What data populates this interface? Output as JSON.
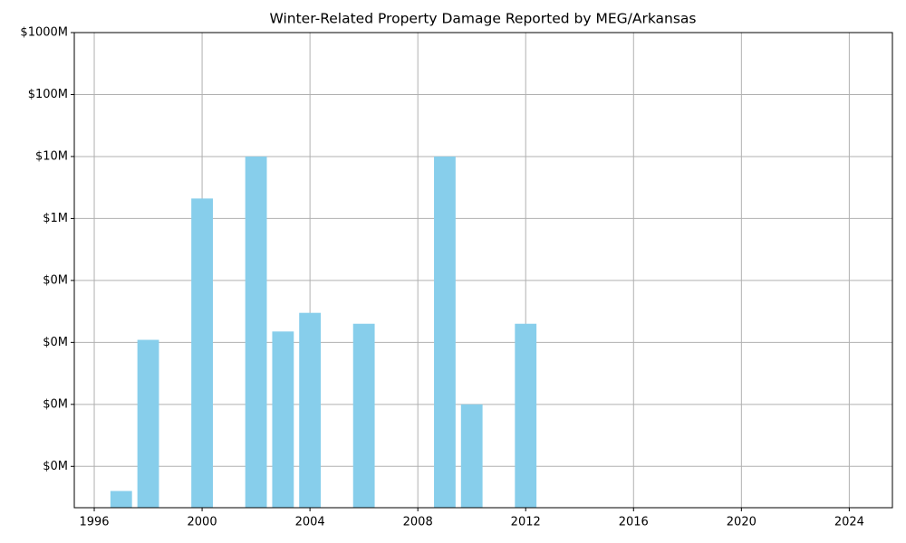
{
  "chart_data": {
    "type": "bar",
    "title": "Winter-Related Property Damage Reported by MEG/Arkansas",
    "x": [
      1997,
      1998,
      2000,
      2002,
      2003,
      2004,
      2006,
      2009,
      2010,
      2012
    ],
    "values": [
      40,
      11000,
      2100000,
      10000000,
      15000,
      30000,
      20000,
      10000000,
      1000,
      20000
    ],
    "color": "#87ceeb",
    "bar_width": 0.8,
    "xlim": [
      1995.26,
      2025.6
    ],
    "xticks": [
      1996,
      2000,
      2004,
      2008,
      2012,
      2016,
      2020,
      2024
    ],
    "ylim": [
      21.5,
      1000000000
    ],
    "log_scale": true,
    "yticks": [
      {
        "value": 100,
        "label": "$0M"
      },
      {
        "value": 1000,
        "label": "$0M"
      },
      {
        "value": 10000,
        "label": "$0M"
      },
      {
        "value": 100000,
        "label": "$0M"
      },
      {
        "value": 1000000,
        "label": "$1M"
      },
      {
        "value": 10000000,
        "label": "$10M"
      },
      {
        "value": 100000000,
        "label": "$100M"
      },
      {
        "value": 1000000000,
        "label": "$1000M"
      }
    ],
    "grid": true
  }
}
